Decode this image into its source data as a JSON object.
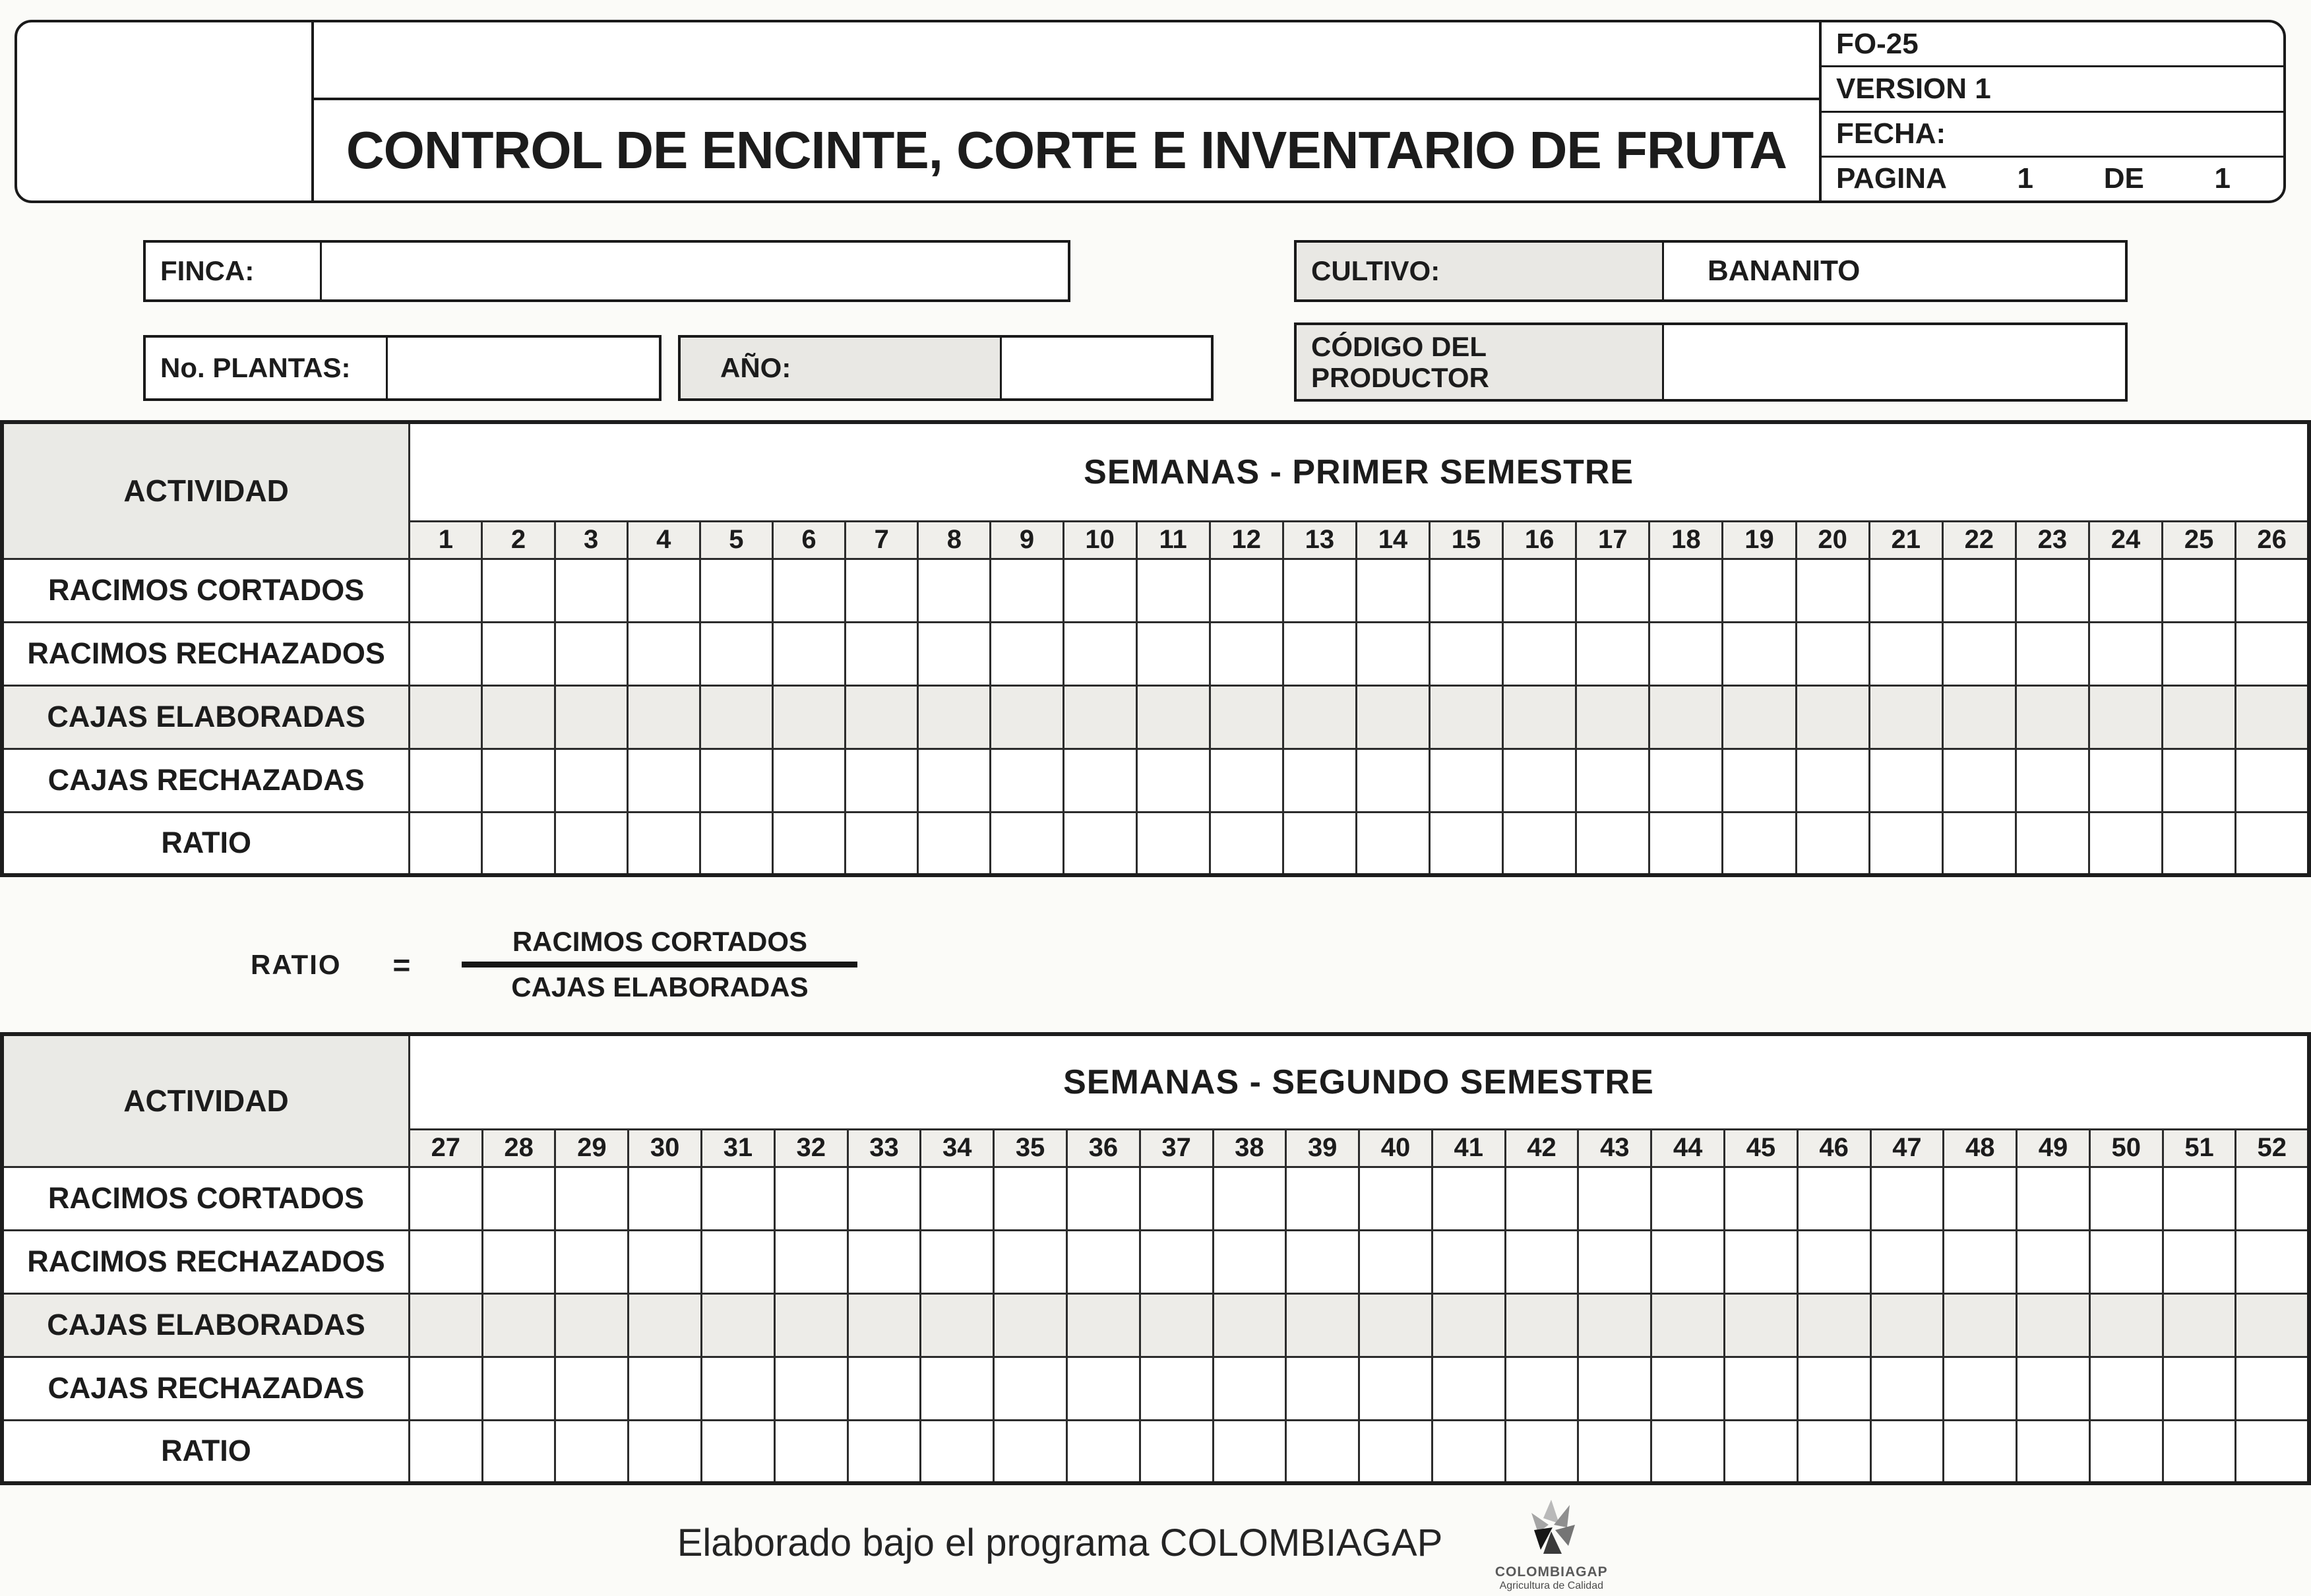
{
  "colors": {
    "ink": "#1c1c1c",
    "shade": "#e9e8e4"
  },
  "header": {
    "title": "CONTROL DE ENCINTE, CORTE E INVENTARIO DE FRUTA",
    "form_code": "FO-25",
    "version": "VERSION 1",
    "fecha_label": "FECHA:",
    "pagina_label": "PAGINA",
    "pagina_number": "1",
    "de_label": "DE",
    "de_number": "1"
  },
  "fields": {
    "finca_label": "FINCA:",
    "finca_value": "",
    "cultivo_label": "CULTIVO:",
    "cultivo_value": "BANANITO",
    "plantas_label": "No. PLANTAS:",
    "plantas_value": "",
    "ano_label": "AÑO:",
    "ano_value": "",
    "codigo_label_line1": "CÓDIGO DEL",
    "codigo_label_line2": "PRODUCTOR",
    "codigo_value": ""
  },
  "table1": {
    "activity_header": "ACTIVIDAD",
    "semanas_header": "SEMANAS -  PRIMER SEMESTRE",
    "weeks": [
      "1",
      "2",
      "3",
      "4",
      "5",
      "6",
      "7",
      "8",
      "9",
      "10",
      "11",
      "12",
      "13",
      "14",
      "15",
      "16",
      "17",
      "18",
      "19",
      "20",
      "21",
      "22",
      "23",
      "24",
      "25",
      "26"
    ],
    "rows": [
      "RACIMOS CORTADOS",
      "RACIMOS RECHAZADOS",
      "CAJAS ELABORADAS",
      "CAJAS RECHAZADAS",
      "RATIO"
    ],
    "cell_values": []
  },
  "ratio_formula": {
    "label": "RATIO",
    "equals": "=",
    "numerator": "RACIMOS CORTADOS",
    "denominator": "CAJAS ELABORADAS"
  },
  "table2": {
    "activity_header": "ACTIVIDAD",
    "semanas_header": "SEMANAS -  SEGUNDO SEMESTRE",
    "weeks": [
      "27",
      "28",
      "29",
      "30",
      "31",
      "32",
      "33",
      "34",
      "35",
      "36",
      "37",
      "38",
      "39",
      "40",
      "41",
      "42",
      "43",
      "44",
      "45",
      "46",
      "47",
      "48",
      "49",
      "50",
      "51",
      "52"
    ],
    "rows": [
      "RACIMOS CORTADOS",
      "RACIMOS RECHAZADOS",
      "CAJAS ELABORADAS",
      "CAJAS RECHAZADAS",
      "RATIO"
    ],
    "cell_values": []
  },
  "footer": {
    "text": "Elaborado bajo el programa COLOMBIAGAP",
    "logo_title": "COLOMBIAGAP",
    "logo_subtitle": "Agricultura de Calidad"
  }
}
